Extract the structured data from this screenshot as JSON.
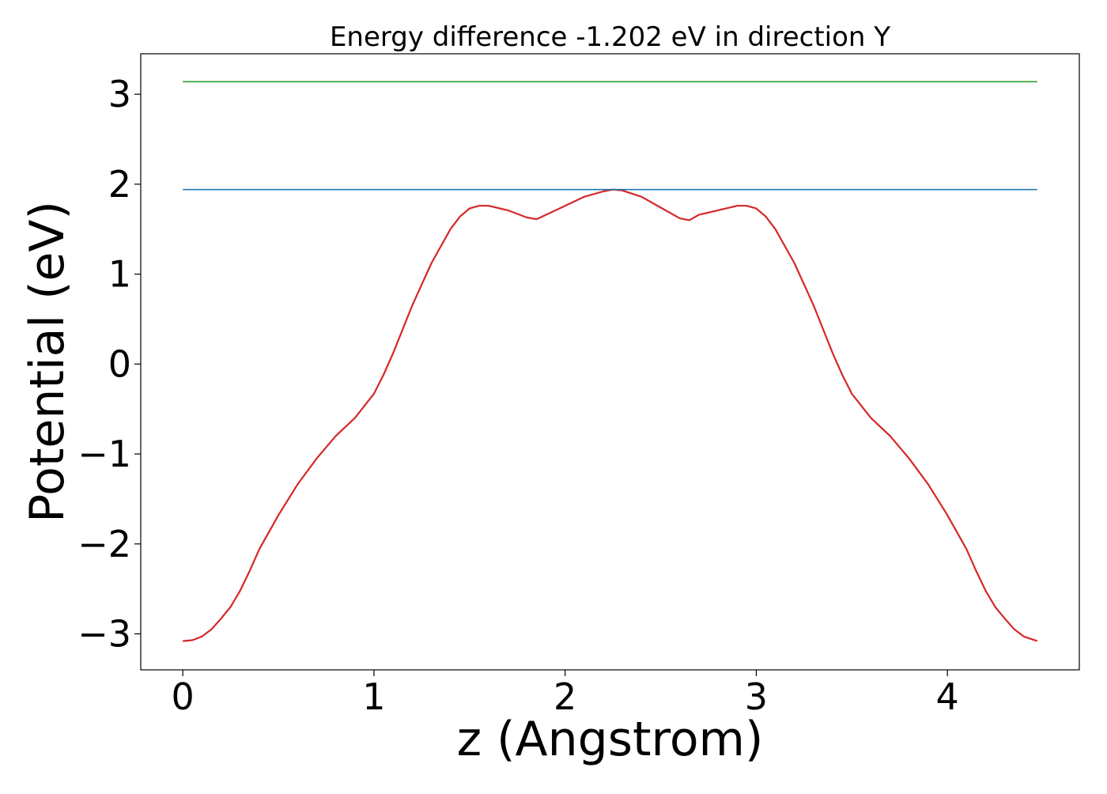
{
  "chart_data": {
    "type": "line",
    "title": "Energy difference -1.202 eV in direction Y",
    "xlabel": "z (Angstrom)",
    "ylabel": "Potential (eV)",
    "xlim": [
      -0.22,
      4.69
    ],
    "ylim": [
      -3.4,
      3.45
    ],
    "xticks": [
      0,
      1,
      2,
      3,
      4
    ],
    "yticks": [
      3,
      2,
      1,
      0,
      -1,
      -2,
      -3
    ],
    "grid": false,
    "legend": "none",
    "series": [
      {
        "color": "#d62728",
        "x": [
          0,
          0.05,
          0.1,
          0.15,
          0.2,
          0.25,
          0.3,
          0.35,
          0.4,
          0.5,
          0.6,
          0.7,
          0.8,
          0.9,
          1.0,
          1.05,
          1.1,
          1.2,
          1.3,
          1.4,
          1.45,
          1.5,
          1.55,
          1.6,
          1.7,
          1.8,
          1.85,
          1.9,
          2.0,
          2.1,
          2.2,
          2.25,
          2.3,
          2.4,
          2.5,
          2.6,
          2.65,
          2.7,
          2.8,
          2.9,
          2.95,
          3.0,
          3.05,
          3.1,
          3.2,
          3.3,
          3.4,
          3.45,
          3.5,
          3.6,
          3.7,
          3.8,
          3.9,
          4.0,
          4.1,
          4.15,
          4.2,
          4.25,
          4.3,
          4.35,
          4.4,
          4.47
        ],
        "y": [
          -3.08,
          -3.07,
          -3.03,
          -2.95,
          -2.83,
          -2.7,
          -2.52,
          -2.3,
          -2.06,
          -1.68,
          -1.34,
          -1.05,
          -0.8,
          -0.6,
          -0.33,
          -0.12,
          0.12,
          0.65,
          1.12,
          1.5,
          1.64,
          1.73,
          1.76,
          1.76,
          1.71,
          1.63,
          1.61,
          1.66,
          1.76,
          1.86,
          1.92,
          1.94,
          1.93,
          1.86,
          1.74,
          1.62,
          1.6,
          1.66,
          1.71,
          1.76,
          1.76,
          1.73,
          1.64,
          1.5,
          1.12,
          0.65,
          0.12,
          -0.12,
          -0.33,
          -0.6,
          -0.8,
          -1.05,
          -1.34,
          -1.68,
          -2.06,
          -2.3,
          -2.52,
          -2.7,
          -2.83,
          -2.95,
          -3.03,
          -3.08
        ]
      },
      {
        "color": "#1f77b4",
        "x": [
          0,
          4.47
        ],
        "y": [
          1.94,
          1.94
        ]
      },
      {
        "color": "#2ca02c",
        "x": [
          0,
          4.47
        ],
        "y": [
          3.14,
          3.14
        ]
      }
    ]
  }
}
